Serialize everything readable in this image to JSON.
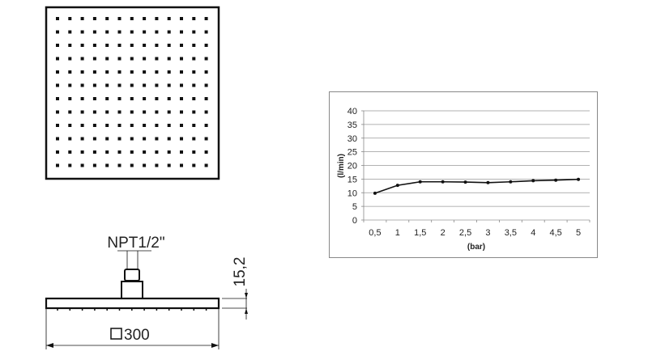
{
  "drawing": {
    "thread_label": "NPT1/2\"",
    "height_dim": "15,2",
    "width_dim": "300",
    "square_symbol": "square"
  },
  "chart_data": {
    "type": "line",
    "categories": [
      "0,5",
      "1",
      "1,5",
      "2",
      "2,5",
      "3",
      "3,5",
      "4",
      "4,5",
      "5"
    ],
    "x": [
      0.5,
      1,
      1.5,
      2,
      2.5,
      3,
      3.5,
      4,
      4.5,
      5
    ],
    "values": [
      9.8,
      12.7,
      14.0,
      14.0,
      13.9,
      13.7,
      14.0,
      14.4,
      14.6,
      14.9
    ],
    "xlabel": "(bar)",
    "ylabel": "(l/min)",
    "ylim": [
      0,
      40
    ],
    "yticks": [
      "0",
      "5",
      "10",
      "15",
      "20",
      "25",
      "30",
      "35",
      "40"
    ],
    "grid": true,
    "legend": "none"
  }
}
